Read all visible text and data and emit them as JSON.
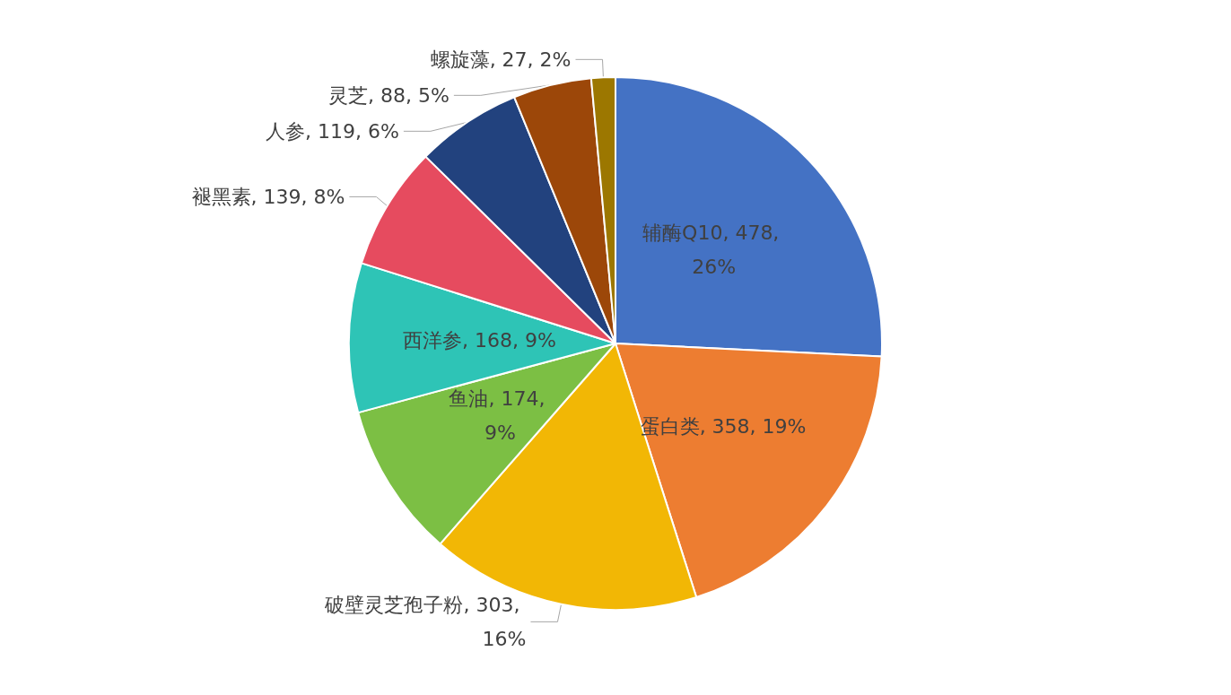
{
  "chart_data": {
    "type": "pie",
    "categories": [
      "辅酶Q10",
      "蛋白类",
      "破壁灵芝孢子粉",
      "鱼油",
      "西洋参",
      "褪黑素",
      "人参",
      "灵芝",
      "螺旋藻"
    ],
    "values": [
      478,
      358,
      303,
      174,
      168,
      139,
      119,
      88,
      27
    ],
    "value_labels": [
      "478, 26%",
      "358, 19%",
      "303, 16%",
      "174, 9%",
      "168, 9%",
      "139, 8%",
      "119, 6%",
      "88, 5%",
      "27, 2%"
    ],
    "colors": [
      "#4472c4",
      "#ed7d31",
      "#f2b705",
      "#7cbf44",
      "#2ec4b6",
      "#e64b5f",
      "#22427e",
      "#9c4709",
      "#9c7700"
    ],
    "legend": false
  }
}
